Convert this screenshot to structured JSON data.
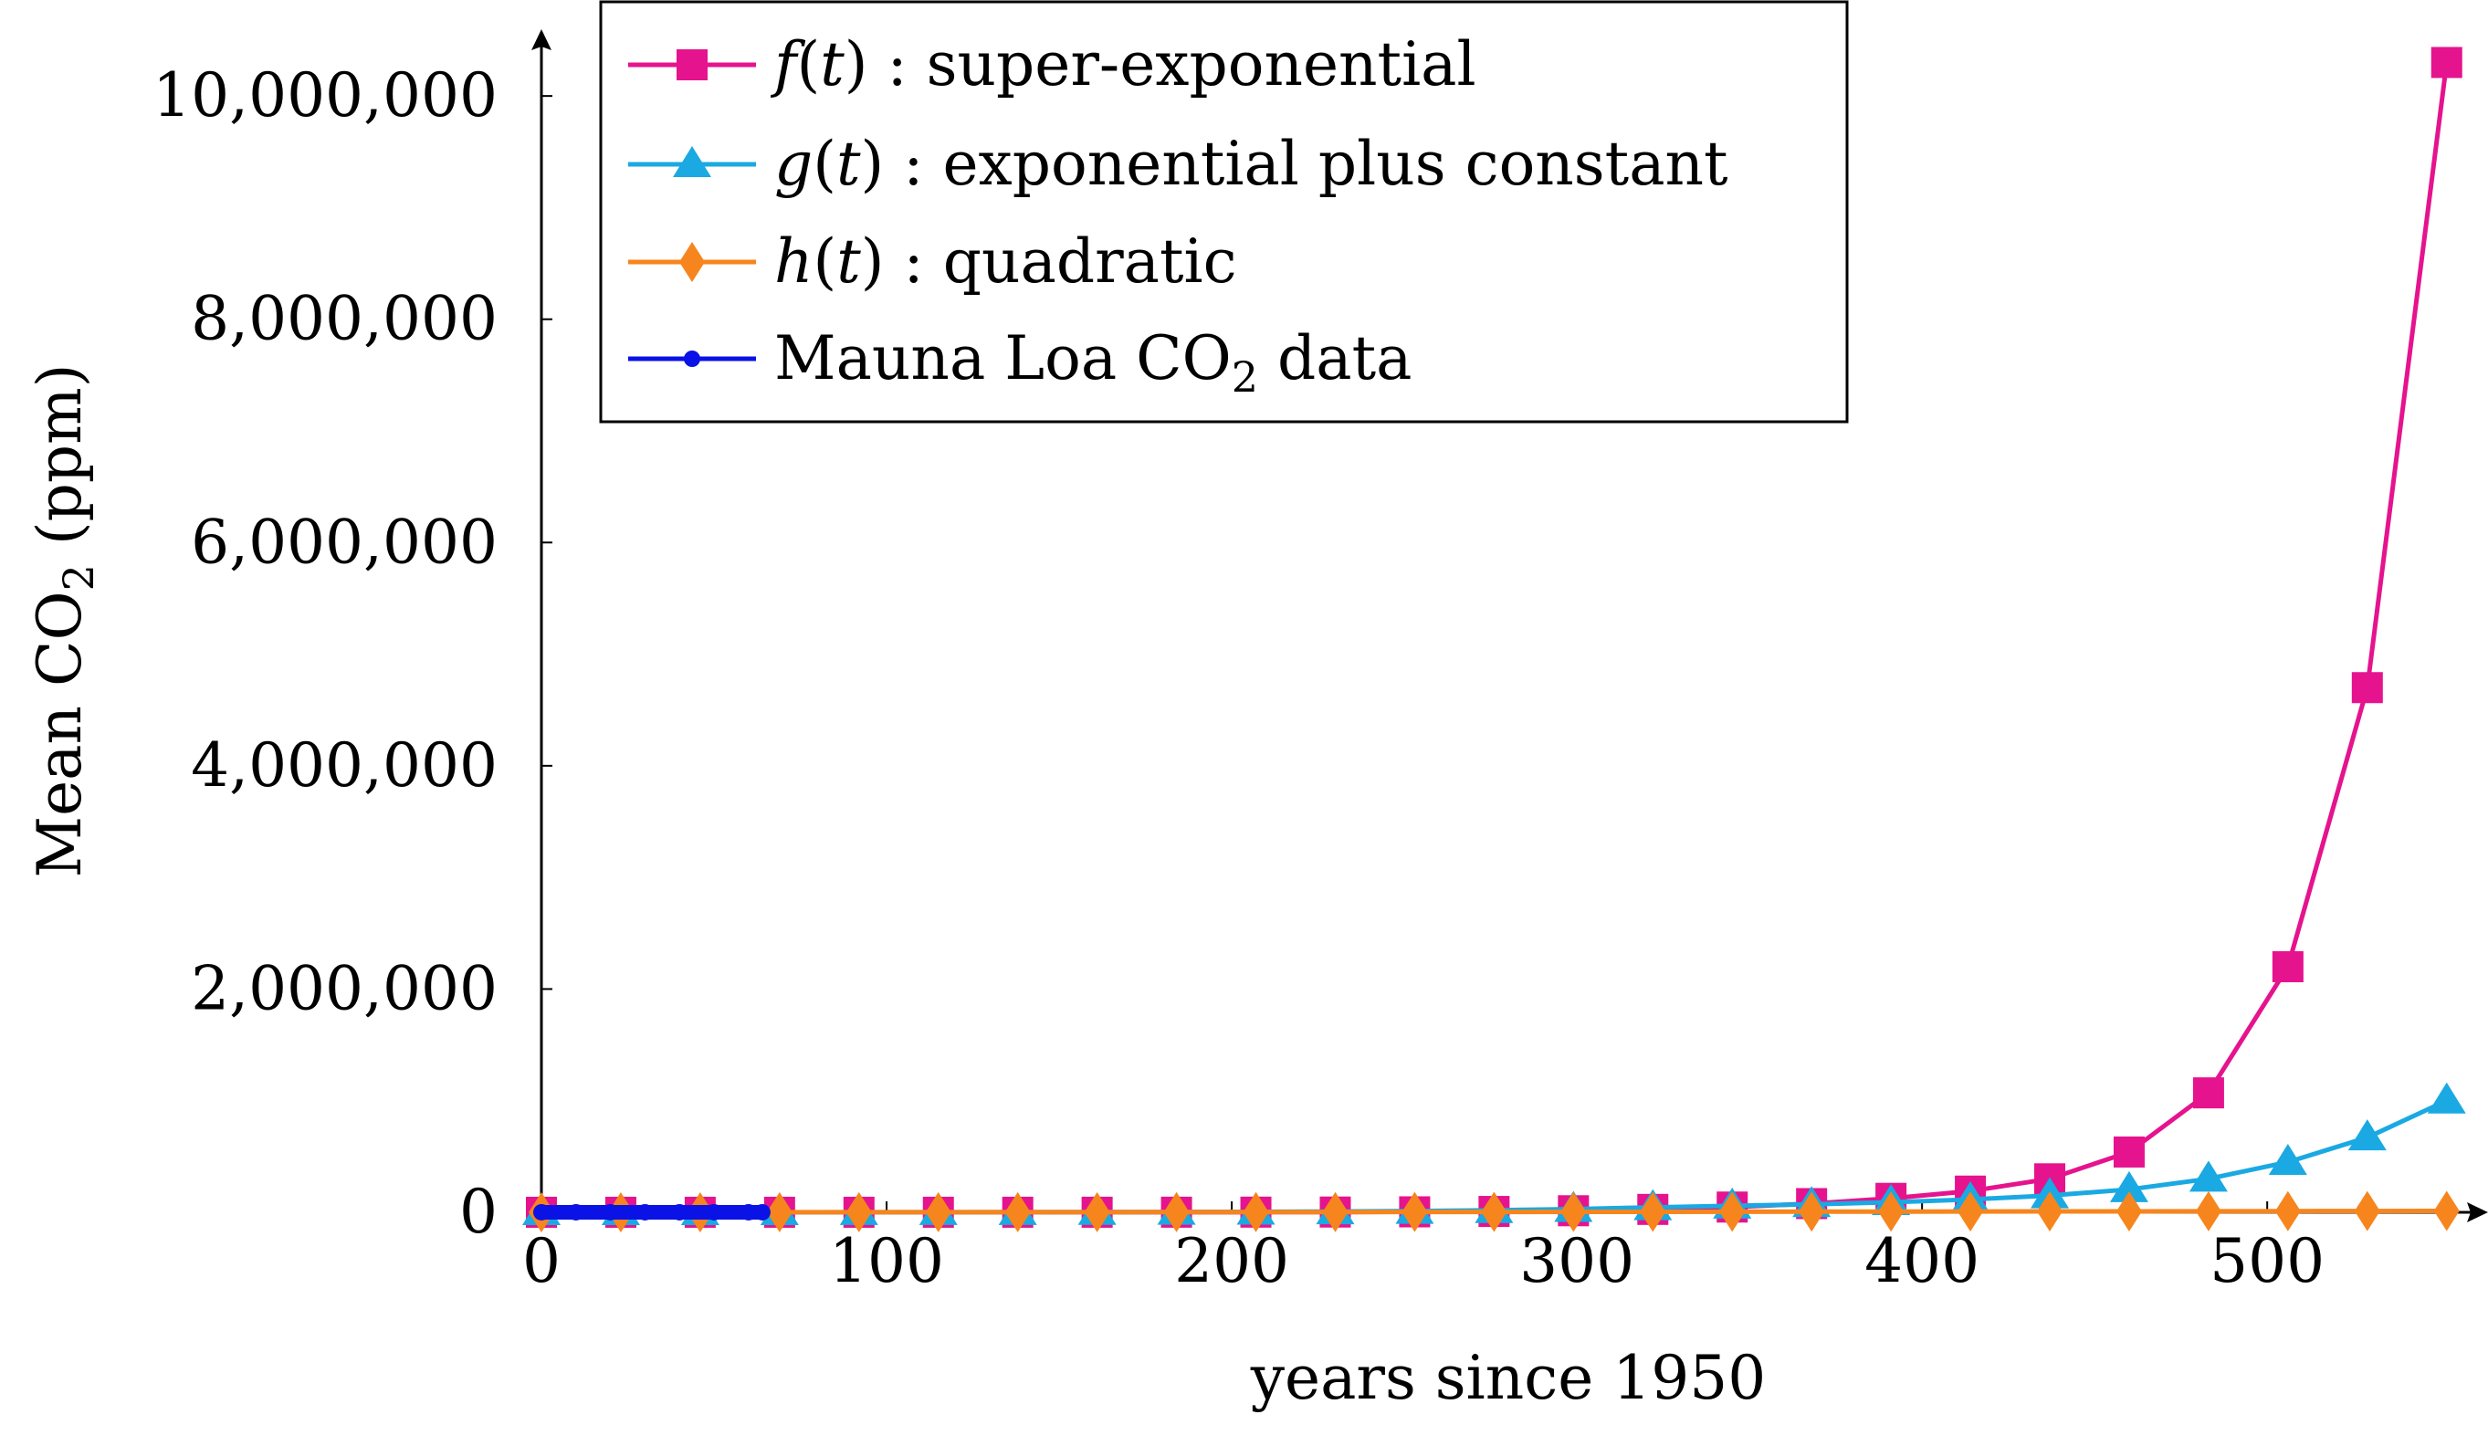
{
  "chart_data": {
    "type": "line",
    "xlabel": "years since 1950",
    "ylabel_main": "Mean CO",
    "ylabel_sub": "2",
    "ylabel_unit": " (ppm)",
    "xlim": [
      0,
      560
    ],
    "ylim": [
      0,
      10500000
    ],
    "x_ticks": [
      0,
      100,
      200,
      300,
      400,
      500
    ],
    "x_tick_labels": [
      "0",
      "100",
      "200",
      "300",
      "400",
      "500"
    ],
    "y_ticks": [
      0,
      2000000,
      4000000,
      6000000,
      8000000,
      10000000
    ],
    "y_tick_labels": [
      "0",
      "2,000,000",
      "4,000,000",
      "6,000,000",
      "8,000,000",
      "10,000,000"
    ],
    "grid": false,
    "legend_position": "top",
    "x": [
      0,
      23,
      46,
      69,
      92,
      115,
      138,
      161,
      184,
      207,
      230,
      253,
      276,
      299,
      322,
      345,
      368,
      391,
      414,
      437,
      460,
      483,
      506,
      529,
      552
    ],
    "series": [
      {
        "name": "super-exponential",
        "func": "f",
        "var": "t",
        "color": "#e5138e",
        "marker": "square",
        "values": [
          310,
          330,
          350,
          380,
          420,
          480,
          570,
          720,
          1000,
          1500,
          2400,
          4200,
          7700,
          14000,
          26000,
          47000,
          78000,
          125000,
          190000,
          300000,
          540000,
          1070000,
          2200000,
          4700000,
          10300000
        ]
      },
      {
        "name": "exponential plus constant",
        "func": "g",
        "var": "t",
        "color": "#1aa9e2",
        "marker": "triangle",
        "values": [
          310,
          340,
          380,
          450,
          570,
          770,
          1100,
          1700,
          2700,
          4300,
          7000,
          11500,
          18500,
          29000,
          44000,
          58000,
          72000,
          90000,
          115000,
          150000,
          205000,
          300000,
          450000,
          670000,
          1000000
        ]
      },
      {
        "name": "quadratic",
        "func": "h",
        "var": "t",
        "color": "#f7851d",
        "marker": "diamond",
        "values": [
          310,
          380,
          480,
          610,
          780,
          990,
          1230,
          1500,
          1800,
          2150,
          2550,
          2980,
          3450,
          3950,
          4500,
          5100,
          5750,
          6400,
          7100,
          7850,
          8650,
          9500,
          10400,
          11300,
          12300
        ]
      },
      {
        "name_main": "Mauna Loa CO",
        "name_sub": "2",
        "name_tail": " data",
        "color": "#0a12e6",
        "marker": "dot",
        "x": [
          0,
          10,
          20,
          30,
          40,
          50,
          60,
          64
        ],
        "values": [
          313,
          317,
          325,
          338,
          353,
          368,
          388,
          398
        ]
      }
    ]
  }
}
